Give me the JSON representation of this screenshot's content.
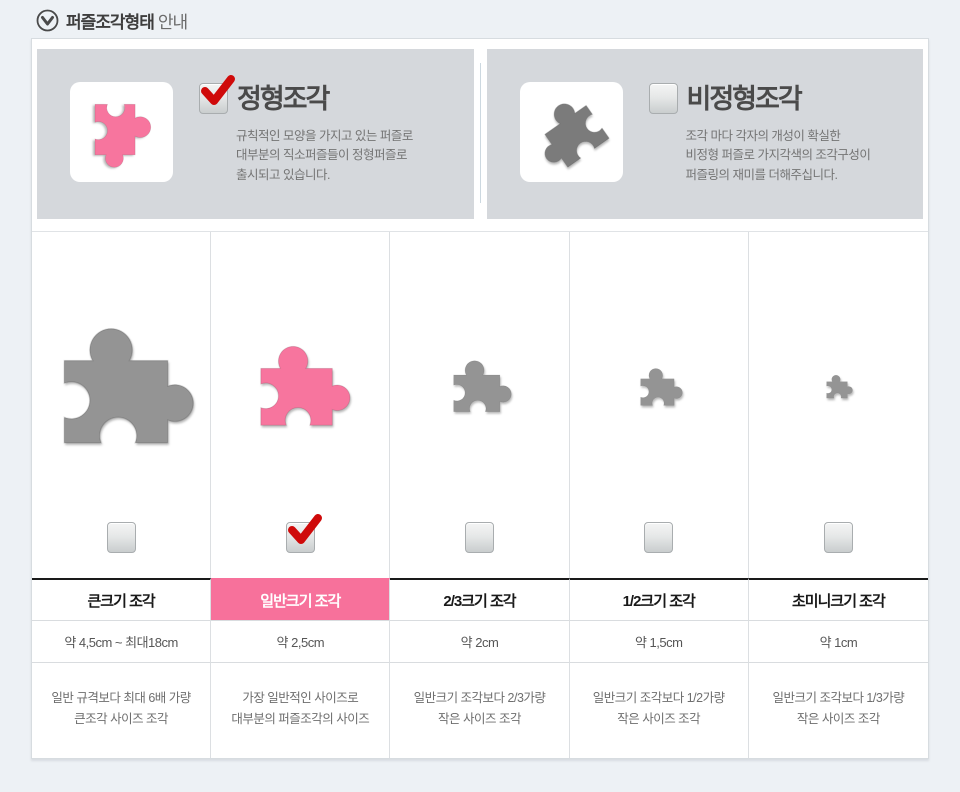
{
  "page": {
    "title_strong": "퍼즐조각형태",
    "title_light": "안내"
  },
  "colors": {
    "accent_pink": "#f7719b",
    "check_red": "#cf0a0a",
    "piece_gray": "#949494",
    "piece_dark_gray": "#7b7b7b",
    "piece_pink": "#f7759e",
    "panel_bg": "#d5d8dc",
    "page_bg": "#edf1f5"
  },
  "panels": [
    {
      "id": "regular",
      "title": "정형조각",
      "checked": true,
      "piece_color": "#f7759e",
      "description": [
        "규칙적인 모양을 가지고 있는 퍼즐로",
        "대부분의 직소퍼즐들이 정형퍼즐로",
        "출시되고 있습니다."
      ]
    },
    {
      "id": "irregular",
      "title": "비정형조각",
      "checked": false,
      "piece_color": "#7b7b7b",
      "description": [
        "조각 마다 각자의 개성이 확실한",
        "비정형 퍼즐로 가지각색의 조각구성이",
        "퍼즐링의 재미를 더해주십니다."
      ]
    }
  ],
  "size_table": {
    "columns": [
      {
        "name": "큰크기 조각",
        "size": "약 4,5cm ~ 최대18cm",
        "desc": [
          "일반 규격보다 최대 6배 가량",
          "큰조각 사이즈 조각"
        ],
        "checked": false,
        "highlight": false,
        "piece_width": 148
      },
      {
        "name": "일반크기 조각",
        "size": "약 2,5cm",
        "desc": [
          "가장 일반적인 사이즈로",
          "대부분의 퍼즐조각의 사이즈"
        ],
        "checked": true,
        "highlight": true,
        "piece_width": 102
      },
      {
        "name": "2/3크기 조각",
        "size": "약 2cm",
        "desc": [
          "일반크기 조각보다 2/3가량",
          "작은 사이즈 조각"
        ],
        "checked": false,
        "highlight": false,
        "piece_width": 66
      },
      {
        "name": "1/2크기 조각",
        "size": "약 1,5cm",
        "desc": [
          "일반크기 조각보다 1/2가량",
          "작은 사이즈 조각"
        ],
        "checked": false,
        "highlight": false,
        "piece_width": 48
      },
      {
        "name": "초미니크기 조각",
        "size": "약 1cm",
        "desc": [
          "일반크기 조각보다 1/3가량",
          "작은 사이즈 조각"
        ],
        "checked": false,
        "highlight": false,
        "piece_width": 30
      }
    ]
  }
}
